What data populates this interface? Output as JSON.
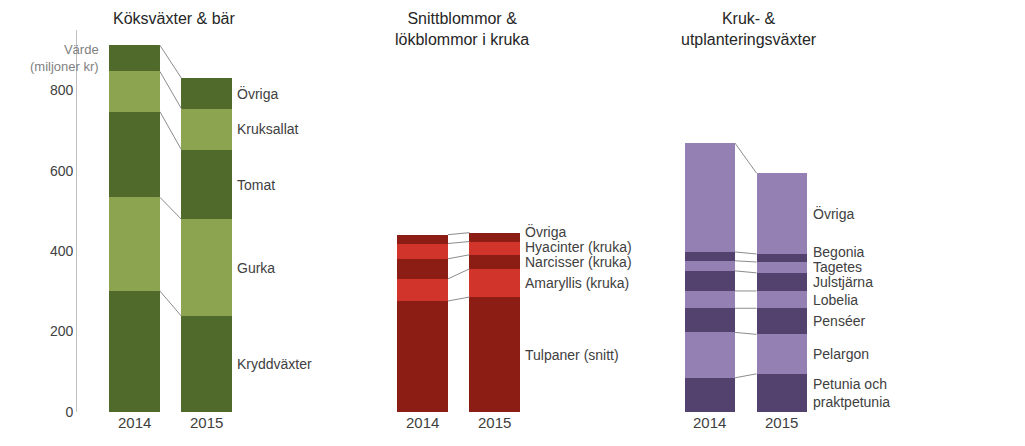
{
  "chart_data": [
    {
      "type": "bar",
      "stacked": true,
      "title": "Köksväxter & bär",
      "y_label": "Värde (miljoner kr)",
      "categories": [
        "2014",
        "2015"
      ],
      "ylim": [
        0,
        950
      ],
      "yticks": [
        0,
        200,
        400,
        600,
        800
      ],
      "series": [
        {
          "name": "Kryddväxter",
          "color": "#4f6a2b",
          "values": [
            301,
            238
          ]
        },
        {
          "name": "Gurka",
          "color": "#8ca34f",
          "values": [
            233,
            241
          ]
        },
        {
          "name": "Tomat",
          "color": "#4f6a2b",
          "values": [
            213,
            173
          ]
        },
        {
          "name": "Kruksallat",
          "color": "#8ca34f",
          "values": [
            100,
            102
          ]
        },
        {
          "name": "Övriga",
          "color": "#4f6a2b",
          "values": [
            65,
            76
          ]
        }
      ]
    },
    {
      "type": "bar",
      "stacked": true,
      "title": "Snittblommor &\nlökblommor i kruka",
      "categories": [
        "2014",
        "2015"
      ],
      "tick_labels": "x",
      "ylim": [
        0,
        950
      ],
      "series": [
        {
          "name": "Tulpaner (snitt)",
          "color": "#8b1d15",
          "values": [
            276,
            286
          ]
        },
        {
          "name": "Amaryllis (kruka)",
          "color": "#d0342a",
          "values": [
            55,
            70
          ]
        },
        {
          "name": "Narcisser (kruka)",
          "color": "#8b1d15",
          "values": [
            50,
            35
          ]
        },
        {
          "name": "Hyacinter (kruka)",
          "color": "#d0342a",
          "values": [
            38,
            33
          ]
        },
        {
          "name": "Övriga",
          "color": "#8b1d15",
          "values": [
            22,
            22
          ]
        }
      ]
    },
    {
      "type": "bar",
      "stacked": true,
      "title": "Kruk- &\nutplanteringsväxter",
      "categories": [
        "2014",
        "2015"
      ],
      "tick_labels": "x",
      "ylim": [
        0,
        950
      ],
      "series": [
        {
          "name": "Petunia och praktpetunia",
          "color": "#54426e",
          "values": [
            85,
            95
          ]
        },
        {
          "name": "Pelargon",
          "color": "#9580b4",
          "values": [
            113,
            98
          ]
        },
        {
          "name": "Penséer",
          "color": "#54426e",
          "values": [
            60,
            65
          ]
        },
        {
          "name": "Lobelia",
          "color": "#9580b4",
          "values": [
            43,
            43
          ]
        },
        {
          "name": "Julstjärna",
          "color": "#54426e",
          "values": [
            50,
            45
          ]
        },
        {
          "name": "Tagetes",
          "color": "#9580b4",
          "values": [
            25,
            27
          ]
        },
        {
          "name": "Begonia",
          "color": "#54426e",
          "values": [
            22,
            20
          ]
        },
        {
          "name": "Övriga",
          "color": "#9580b4",
          "values": [
            271,
            201
          ]
        }
      ]
    }
  ]
}
